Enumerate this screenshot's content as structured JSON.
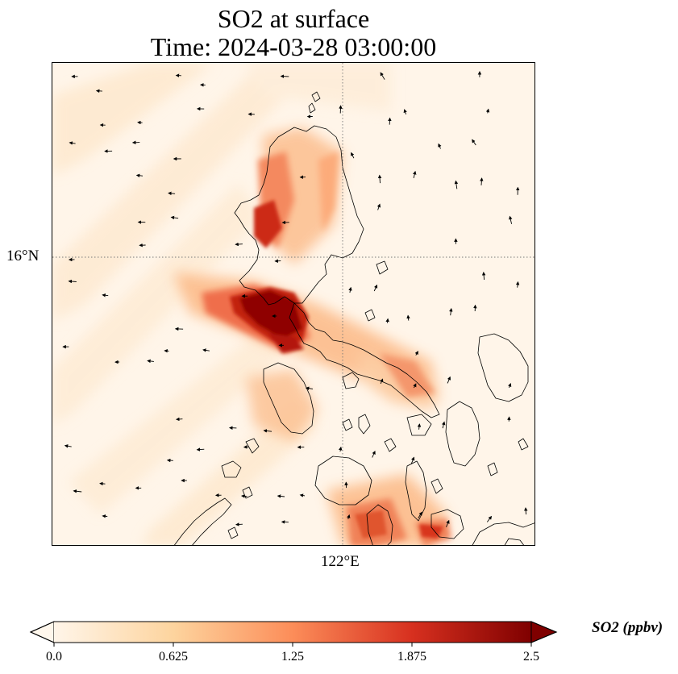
{
  "title": {
    "line1": "SO2 at surface",
    "line2": "Time: 2024-03-28 03:00:00"
  },
  "map": {
    "lat_label": "16°N",
    "lon_label": "122°E",
    "plume_color_scale": "OrRd",
    "coastline_color": "#000000",
    "gridline_style": "dotted"
  },
  "colorbar": {
    "label": "SO2 (ppbv)",
    "ticks": [
      "0.0",
      "0.625",
      "1.25",
      "1.875",
      "2.5"
    ],
    "range": [
      0,
      2.5
    ],
    "extend": "both",
    "colors": [
      "#fff5e9",
      "#fdd49e",
      "#fc8d59",
      "#d7301f",
      "#7f0000"
    ]
  }
}
